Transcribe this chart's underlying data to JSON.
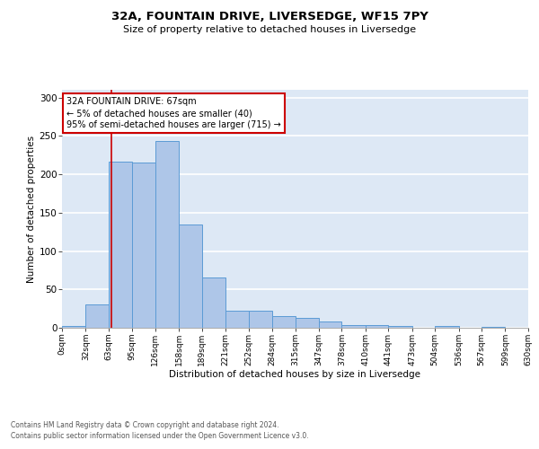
{
  "title": "32A, FOUNTAIN DRIVE, LIVERSEDGE, WF15 7PY",
  "subtitle": "Size of property relative to detached houses in Liversedge",
  "xlabel": "Distribution of detached houses by size in Liversedge",
  "ylabel": "Number of detached properties",
  "footer_line1": "Contains HM Land Registry data © Crown copyright and database right 2024.",
  "footer_line2": "Contains public sector information licensed under the Open Government Licence v3.0.",
  "annotation_title": "32A FOUNTAIN DRIVE: 67sqm",
  "annotation_line2": "← 5% of detached houses are smaller (40)",
  "annotation_line3": "95% of semi-detached houses are larger (715) →",
  "property_size": 67,
  "bar_bins": [
    0,
    32,
    63,
    95,
    126,
    158,
    189,
    221,
    252,
    284,
    315,
    347,
    378,
    410,
    441,
    473,
    504,
    536,
    567,
    599,
    630
  ],
  "bar_values": [
    2,
    30,
    216,
    215,
    243,
    135,
    65,
    22,
    22,
    15,
    13,
    8,
    3,
    3,
    2,
    0,
    2,
    0,
    1,
    0,
    2
  ],
  "bar_color": "#aec6e8",
  "bar_edge_color": "#5b9bd5",
  "vline_color": "#cc0000",
  "background_color": "#dde8f5",
  "annotation_box_color": "#ffffff",
  "annotation_box_edge": "#cc0000",
  "grid_color": "#ffffff",
  "tick_labels": [
    "0sqm",
    "32sqm",
    "63sqm",
    "95sqm",
    "126sqm",
    "158sqm",
    "189sqm",
    "221sqm",
    "252sqm",
    "284sqm",
    "315sqm",
    "347sqm",
    "378sqm",
    "410sqm",
    "441sqm",
    "473sqm",
    "504sqm",
    "536sqm",
    "567sqm",
    "599sqm",
    "630sqm"
  ],
  "ylim": [
    0,
    310
  ],
  "yticks": [
    0,
    50,
    100,
    150,
    200,
    250,
    300
  ]
}
